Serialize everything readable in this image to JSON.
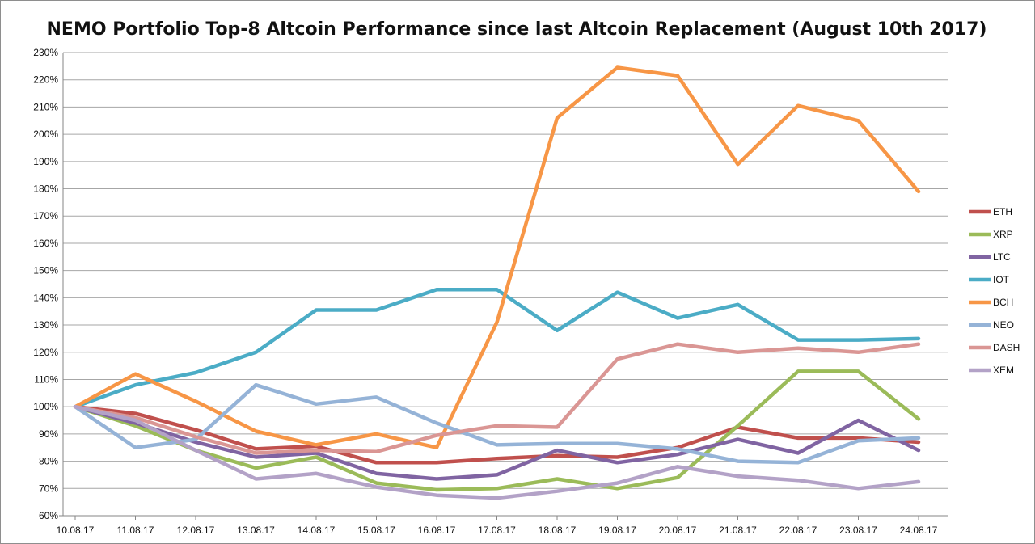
{
  "chart_data": {
    "type": "line",
    "title": "NEMO Portfolio Top-8 Altcoin Performance since last Altcoin Replacement (August 10th 2017)",
    "xlabel": "",
    "ylabel": "",
    "categories": [
      "10.08.17",
      "11.08.17",
      "12.08.17",
      "13.08.17",
      "14.08.17",
      "15.08.17",
      "16.08.17",
      "17.08.17",
      "18.08.17",
      "19.08.17",
      "20.08.17",
      "21.08.17",
      "22.08.17",
      "23.08.17",
      "24.08.17"
    ],
    "ylim": [
      60,
      230
    ],
    "y_ticks": [
      60,
      70,
      80,
      90,
      100,
      110,
      120,
      130,
      140,
      150,
      160,
      170,
      180,
      190,
      200,
      210,
      220,
      230
    ],
    "y_tick_labels": [
      "60%",
      "70%",
      "80%",
      "90%",
      "100%",
      "110%",
      "120%",
      "130%",
      "140%",
      "150%",
      "160%",
      "170%",
      "180%",
      "190%",
      "200%",
      "210%",
      "220%",
      "230%"
    ],
    "grid": true,
    "legend_position": "right",
    "series": [
      {
        "name": "ETH",
        "color": "#c0504d",
        "values": [
          100,
          97.5,
          91.5,
          84.5,
          85.5,
          79.5,
          79.5,
          81,
          82,
          81.5,
          85,
          92.5,
          88.5,
          88.5,
          87
        ]
      },
      {
        "name": "XRP",
        "color": "#9bbb59",
        "values": [
          100,
          93,
          84,
          77.5,
          81.5,
          72,
          69.5,
          70,
          73.5,
          70,
          74,
          93,
          113,
          113,
          95.5
        ]
      },
      {
        "name": "LTC",
        "color": "#8064a2",
        "values": [
          100,
          94,
          87,
          81.5,
          83,
          75.5,
          73.5,
          75,
          84,
          79.5,
          82.5,
          88,
          83,
          95,
          84
        ]
      },
      {
        "name": "IOT",
        "color": "#4bacc6",
        "values": [
          100,
          108,
          112.5,
          120,
          135.5,
          135.5,
          143,
          143,
          128,
          142,
          132.5,
          137.5,
          124.5,
          124.5,
          125
        ]
      },
      {
        "name": "BCH",
        "color": "#f79646",
        "values": [
          100,
          112,
          102,
          91,
          86,
          90,
          85,
          131,
          206,
          224.5,
          221.5,
          189,
          210.5,
          205,
          179
        ]
      },
      {
        "name": "NEO",
        "color": "#95b3d7",
        "values": [
          100,
          85,
          88,
          108,
          101,
          103.5,
          94,
          86,
          86.5,
          86.5,
          84.5,
          80,
          79.5,
          87.5,
          88.5
        ]
      },
      {
        "name": "DASH",
        "color": "#da9694",
        "values": [
          100,
          96,
          89,
          83,
          84,
          83.5,
          89.5,
          93,
          92.5,
          117.5,
          123,
          120,
          121.5,
          120,
          123
        ]
      },
      {
        "name": "XEM",
        "color": "#b3a2c7",
        "values": [
          100,
          95,
          84,
          73.5,
          75.5,
          70.5,
          67.5,
          66.5,
          69,
          72,
          78,
          74.5,
          73,
          70,
          72.5
        ]
      }
    ]
  }
}
